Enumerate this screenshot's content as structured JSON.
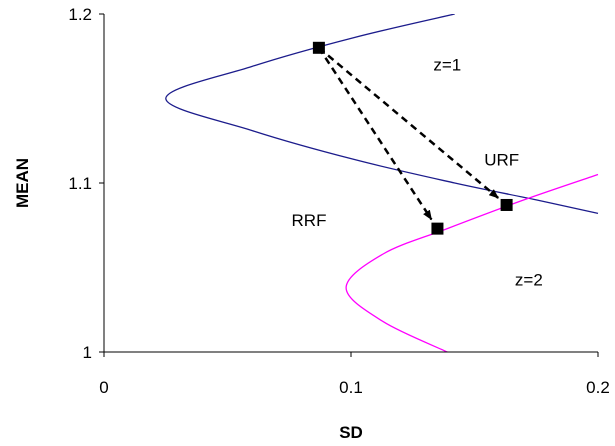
{
  "chart_data": {
    "type": "line",
    "xlabel": "SD",
    "ylabel": "MEAN",
    "xlim": [
      0,
      0.2
    ],
    "ylim": [
      1,
      1.2
    ],
    "x_ticks": [
      "0",
      "0.1",
      "0.2"
    ],
    "y_ticks": [
      "1",
      "1.1",
      "1.2"
    ],
    "grid": false,
    "legend": "none",
    "series": [
      {
        "color": "#1c1c8c",
        "shape": "hyperbola-frontier",
        "x": [
          0.142,
          0.101,
          0.06,
          0.025,
          0.06,
          0.101,
          0.142,
          0.175,
          0.2
        ],
        "y": [
          1.2,
          1.186,
          1.169,
          1.15,
          1.131,
          1.114,
          1.1,
          1.09,
          1.082
        ]
      },
      {
        "color": "#ff00ff",
        "shape": "hyperbola-frontier",
        "x": [
          0.139,
          0.113,
          0.098,
          0.113,
          0.139,
          0.17,
          0.2
        ],
        "y": [
          1.0,
          1.018,
          1.038,
          1.058,
          1.073,
          1.09,
          1.105
        ]
      }
    ],
    "points": [
      {
        "x": 0.087,
        "y": 1.18
      },
      {
        "x": 0.135,
        "y": 1.073
      },
      {
        "x": 0.163,
        "y": 1.087
      }
    ],
    "arrows": [
      {
        "from": [
          0.087,
          1.18
        ],
        "to": [
          0.135,
          1.073
        ]
      },
      {
        "from": [
          0.087,
          1.18
        ],
        "to": [
          0.163,
          1.087
        ]
      }
    ],
    "annotations": [
      {
        "text": "z=1",
        "x": 0.139,
        "y": 1.17
      },
      {
        "text": "URF",
        "x": 0.161,
        "y": 1.114
      },
      {
        "text": "RRF",
        "x": 0.083,
        "y": 1.078
      },
      {
        "text": "z=2",
        "x": 0.172,
        "y": 1.043
      }
    ]
  }
}
